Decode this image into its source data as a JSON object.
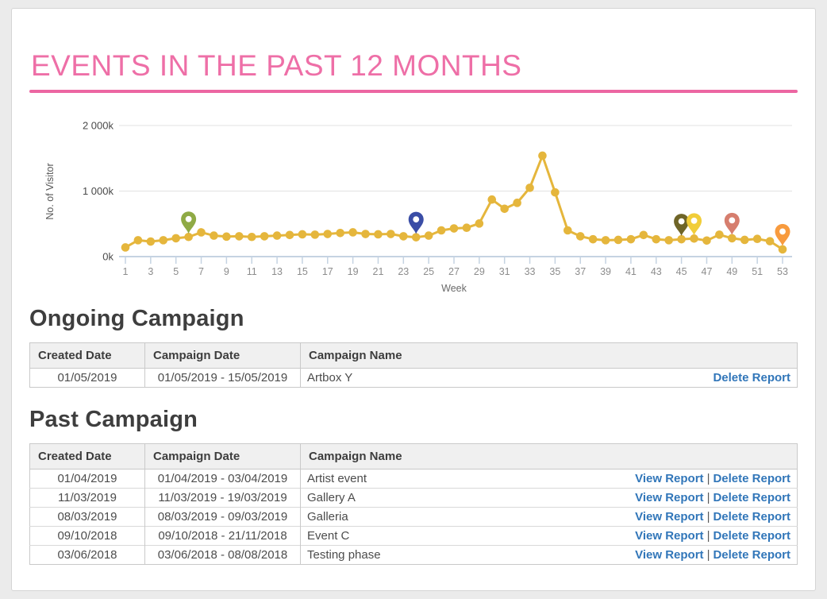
{
  "page": {
    "title": "EVENTS IN THE PAST 12 MONTHS"
  },
  "chart_data": {
    "type": "line",
    "xlabel": "Week",
    "ylabel": "No. of Visitor",
    "values_unit": "k (thousands of visitors)",
    "ylim": [
      0,
      2000
    ],
    "yticks": [
      0,
      1000,
      2000
    ],
    "ytick_labels": [
      "0k",
      "1 000k",
      "2 000k"
    ],
    "xticks": [
      1,
      3,
      5,
      7,
      9,
      11,
      13,
      15,
      17,
      19,
      21,
      23,
      25,
      27,
      29,
      31,
      33,
      35,
      37,
      39,
      41,
      43,
      45,
      47,
      49,
      51,
      53
    ],
    "x": [
      1,
      2,
      3,
      4,
      5,
      6,
      7,
      8,
      9,
      10,
      11,
      12,
      13,
      14,
      15,
      16,
      17,
      18,
      19,
      20,
      21,
      22,
      23,
      24,
      25,
      26,
      27,
      28,
      29,
      30,
      31,
      32,
      33,
      34,
      35,
      36,
      37,
      38,
      39,
      40,
      41,
      42,
      43,
      44,
      45,
      46,
      47,
      48,
      49,
      50,
      51,
      52,
      53
    ],
    "values": [
      140,
      250,
      230,
      250,
      280,
      300,
      370,
      320,
      305,
      310,
      300,
      310,
      320,
      330,
      340,
      335,
      345,
      360,
      370,
      345,
      340,
      345,
      310,
      295,
      320,
      400,
      430,
      440,
      505,
      870,
      730,
      820,
      1050,
      1540,
      980,
      400,
      310,
      265,
      250,
      255,
      265,
      330,
      265,
      250,
      265,
      275,
      245,
      335,
      280,
      255,
      270,
      235,
      110
    ],
    "grid": true,
    "legend": "none",
    "line_color": "#e5b63c",
    "axis_color": "#c5d3e2",
    "grid_color": "#e1e1e1",
    "markers": [
      {
        "week": 6,
        "color": "#8faa45",
        "name": "green-pin"
      },
      {
        "week": 24,
        "color": "#3a4da6",
        "name": "blue-pin"
      },
      {
        "week": 45,
        "color": "#6f6528",
        "name": "olive-pin"
      },
      {
        "week": 46,
        "color": "#f1cd39",
        "name": "yellow-pin"
      },
      {
        "week": 49,
        "color": "#d67e6e",
        "name": "salmon-pin"
      },
      {
        "week": 53,
        "color": "#f89b3e",
        "name": "orange-pin"
      }
    ]
  },
  "ongoing": {
    "heading": "Ongoing Campaign",
    "columns": [
      "Created Date",
      "Campaign Date",
      "Campaign Name"
    ],
    "rows": [
      {
        "created": "01/05/2019",
        "date": "01/05/2019 - 15/05/2019",
        "name": "Artbox Y",
        "actions": [
          "Delete Report"
        ]
      }
    ]
  },
  "past": {
    "heading": "Past Campaign",
    "columns": [
      "Created Date",
      "Campaign Date",
      "Campaign Name"
    ],
    "rows": [
      {
        "created": "01/04/2019",
        "date": "01/04/2019 - 03/04/2019",
        "name": "Artist event",
        "actions": [
          "View Report",
          "Delete Report"
        ]
      },
      {
        "created": "11/03/2019",
        "date": "11/03/2019 - 19/03/2019",
        "name": "Gallery A",
        "actions": [
          "View Report",
          "Delete Report"
        ]
      },
      {
        "created": "08/03/2019",
        "date": "08/03/2019 - 09/03/2019",
        "name": "Galleria",
        "actions": [
          "View Report",
          "Delete Report"
        ]
      },
      {
        "created": "09/10/2018",
        "date": "09/10/2018 - 21/11/2018",
        "name": "Event C",
        "actions": [
          "View Report",
          "Delete Report"
        ]
      },
      {
        "created": "03/06/2018",
        "date": "03/06/2018 - 08/08/2018",
        "name": "Testing phase",
        "actions": [
          "View Report",
          "Delete Report"
        ]
      }
    ]
  },
  "links": {
    "view_label": "View Report",
    "delete_label": "Delete Report",
    "separator": "|"
  },
  "colors": {
    "accent_pink": "#ee6fa7",
    "line_gold": "#e5b63c",
    "link_blue": "#3176b9",
    "heading_gray": "#3e3e3e"
  }
}
